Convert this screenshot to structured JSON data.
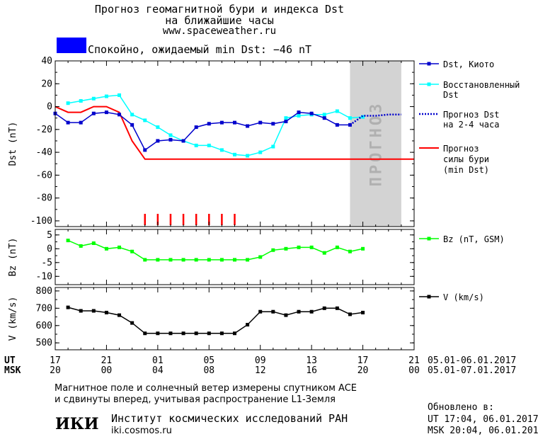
{
  "header": {
    "title_line1": "Прогноз геомагнитной бури и индекса Dst",
    "title_line2": "на ближайшие часы",
    "site": "www.spaceweather.ru",
    "status_text": "Спокойно, ожидаемый min Dst: −46 nT",
    "status_color": "#0000ff"
  },
  "legend": {
    "dst_kyoto": "Dst, Киото",
    "dst_restored_1": "Восстановленный",
    "dst_restored_2": "Dst",
    "dst_forecast_1": "Прогноз Dst",
    "dst_forecast_2": "на 2-4 часа",
    "storm_forecast_1": "Прогноз",
    "storm_forecast_2": "силы бури",
    "storm_forecast_3": "(min Dst)",
    "bz": "Bz (nT, GSM)",
    "v": "V (km/s)"
  },
  "time_axis": {
    "ut_label": "UT",
    "msk_label": "MSK",
    "ut_ticks": [
      "17",
      "21",
      "01",
      "05",
      "09",
      "13",
      "17",
      "21"
    ],
    "msk_ticks": [
      "20",
      "00",
      "04",
      "08",
      "12",
      "16",
      "20",
      "00"
    ],
    "ut_dates": "05.01-06.01.2017",
    "msk_dates": "05.01-07.01.2017"
  },
  "footer": {
    "note_line1": "Магнитное поле и солнечный ветер измерены спутником ACE",
    "note_line2": "и сдвинуты вперед, учитывая распространение L1-Земля",
    "institute": "Институт космических исследований РАН",
    "institute_site": "iki.cosmos.ru",
    "logo_text": "ИКИ",
    "updated_label": "Обновлено в:",
    "updated_ut": "UT  17:04, 06.01.2017",
    "updated_msk": "MSK 20:04, 06.01.2017"
  },
  "chart_data": [
    {
      "type": "line",
      "ylabel": "Dst (nT)",
      "ylim": [
        -105,
        40
      ],
      "yticks": [
        40,
        20,
        0,
        -20,
        -40,
        -60,
        -80,
        -100
      ],
      "xlim": [
        17,
        45
      ],
      "forecast_zone_label": "ПРОГНОЗ",
      "forecast_zone_x": [
        40,
        44
      ],
      "storm_markers_x": [
        24,
        25,
        26,
        27,
        28,
        29,
        30,
        31
      ],
      "colors": {
        "kyoto": "#0000cc",
        "restored": "#00ffff",
        "forecast": "#0000cc",
        "storm": "#ff0000",
        "markers": "#ff0000",
        "zone": "#d3d3d3"
      },
      "series": [
        {
          "name": "Dst, Киото",
          "x": [
            17,
            18,
            19,
            20,
            21,
            22,
            23,
            24,
            25,
            26,
            27,
            28,
            29,
            30,
            31,
            32,
            33,
            34,
            35,
            36,
            37,
            38,
            39,
            40
          ],
          "values": [
            -6,
            -14,
            -14,
            -6,
            -5,
            -7,
            -16,
            -38,
            -30,
            -29,
            -30,
            -18,
            -15,
            -14,
            -14,
            -17,
            -14,
            -15,
            -13,
            -5,
            -6,
            -10,
            -16,
            -16
          ]
        },
        {
          "name": "Восстановленный Dst",
          "x": [
            18,
            19,
            20,
            21,
            22,
            23,
            24,
            25,
            26,
            27,
            28,
            29,
            30,
            31,
            32,
            33,
            34,
            35,
            36,
            37,
            38,
            39,
            40,
            41
          ],
          "values": [
            3,
            5,
            7,
            9,
            10,
            -7,
            -12,
            -18,
            -25,
            -30,
            -34,
            -34,
            -38,
            -42,
            -43,
            -40,
            -35,
            -10,
            -8,
            -7,
            -7,
            -4,
            -10,
            -9
          ]
        },
        {
          "name": "Прогноз Dst на 2-4 часа",
          "x": [
            40,
            41,
            42,
            43,
            44
          ],
          "values": [
            -16,
            -8,
            -8,
            -7,
            -7
          ]
        },
        {
          "name": "Прогноз силы бури (min Dst)",
          "x": [
            17,
            18,
            19,
            20,
            21,
            22,
            23,
            24,
            45
          ],
          "values": [
            0,
            -5,
            -5,
            0,
            0,
            -5,
            -30,
            -46,
            -46
          ]
        }
      ]
    },
    {
      "type": "line",
      "ylabel": "Bz (nT)",
      "ylim": [
        -13,
        7
      ],
      "yticks": [
        5,
        0,
        -5,
        -10
      ],
      "xlim": [
        17,
        45
      ],
      "colors": {
        "bz": "#00ff00"
      },
      "series": [
        {
          "name": "Bz (nT, GSM)",
          "x": [
            18,
            19,
            20,
            21,
            22,
            23,
            24,
            25,
            26,
            27,
            28,
            29,
            30,
            31,
            32,
            33,
            34,
            35,
            36,
            37,
            38,
            39,
            40,
            41
          ],
          "values": [
            3,
            1,
            2,
            0,
            0.5,
            -1,
            -4,
            -4,
            -4,
            -4,
            -4,
            -4,
            -4,
            -4,
            -4,
            -3,
            -0.5,
            0,
            0.5,
            0.5,
            -1.5,
            0.5,
            -1,
            0
          ]
        }
      ]
    },
    {
      "type": "line",
      "ylabel": "V (km/s)",
      "ylim": [
        460,
        820
      ],
      "yticks": [
        800,
        700,
        600,
        500
      ],
      "xlim": [
        17,
        45
      ],
      "colors": {
        "v": "#000000"
      },
      "series": [
        {
          "name": "V (km/s)",
          "x": [
            18,
            19,
            20,
            21,
            22,
            23,
            24,
            25,
            26,
            27,
            28,
            29,
            30,
            31,
            32,
            33,
            34,
            35,
            36,
            37,
            38,
            39,
            40,
            41
          ],
          "values": [
            705,
            685,
            685,
            675,
            660,
            615,
            555,
            555,
            555,
            555,
            555,
            555,
            555,
            555,
            605,
            680,
            680,
            660,
            680,
            680,
            700,
            700,
            665,
            675
          ]
        }
      ]
    }
  ]
}
